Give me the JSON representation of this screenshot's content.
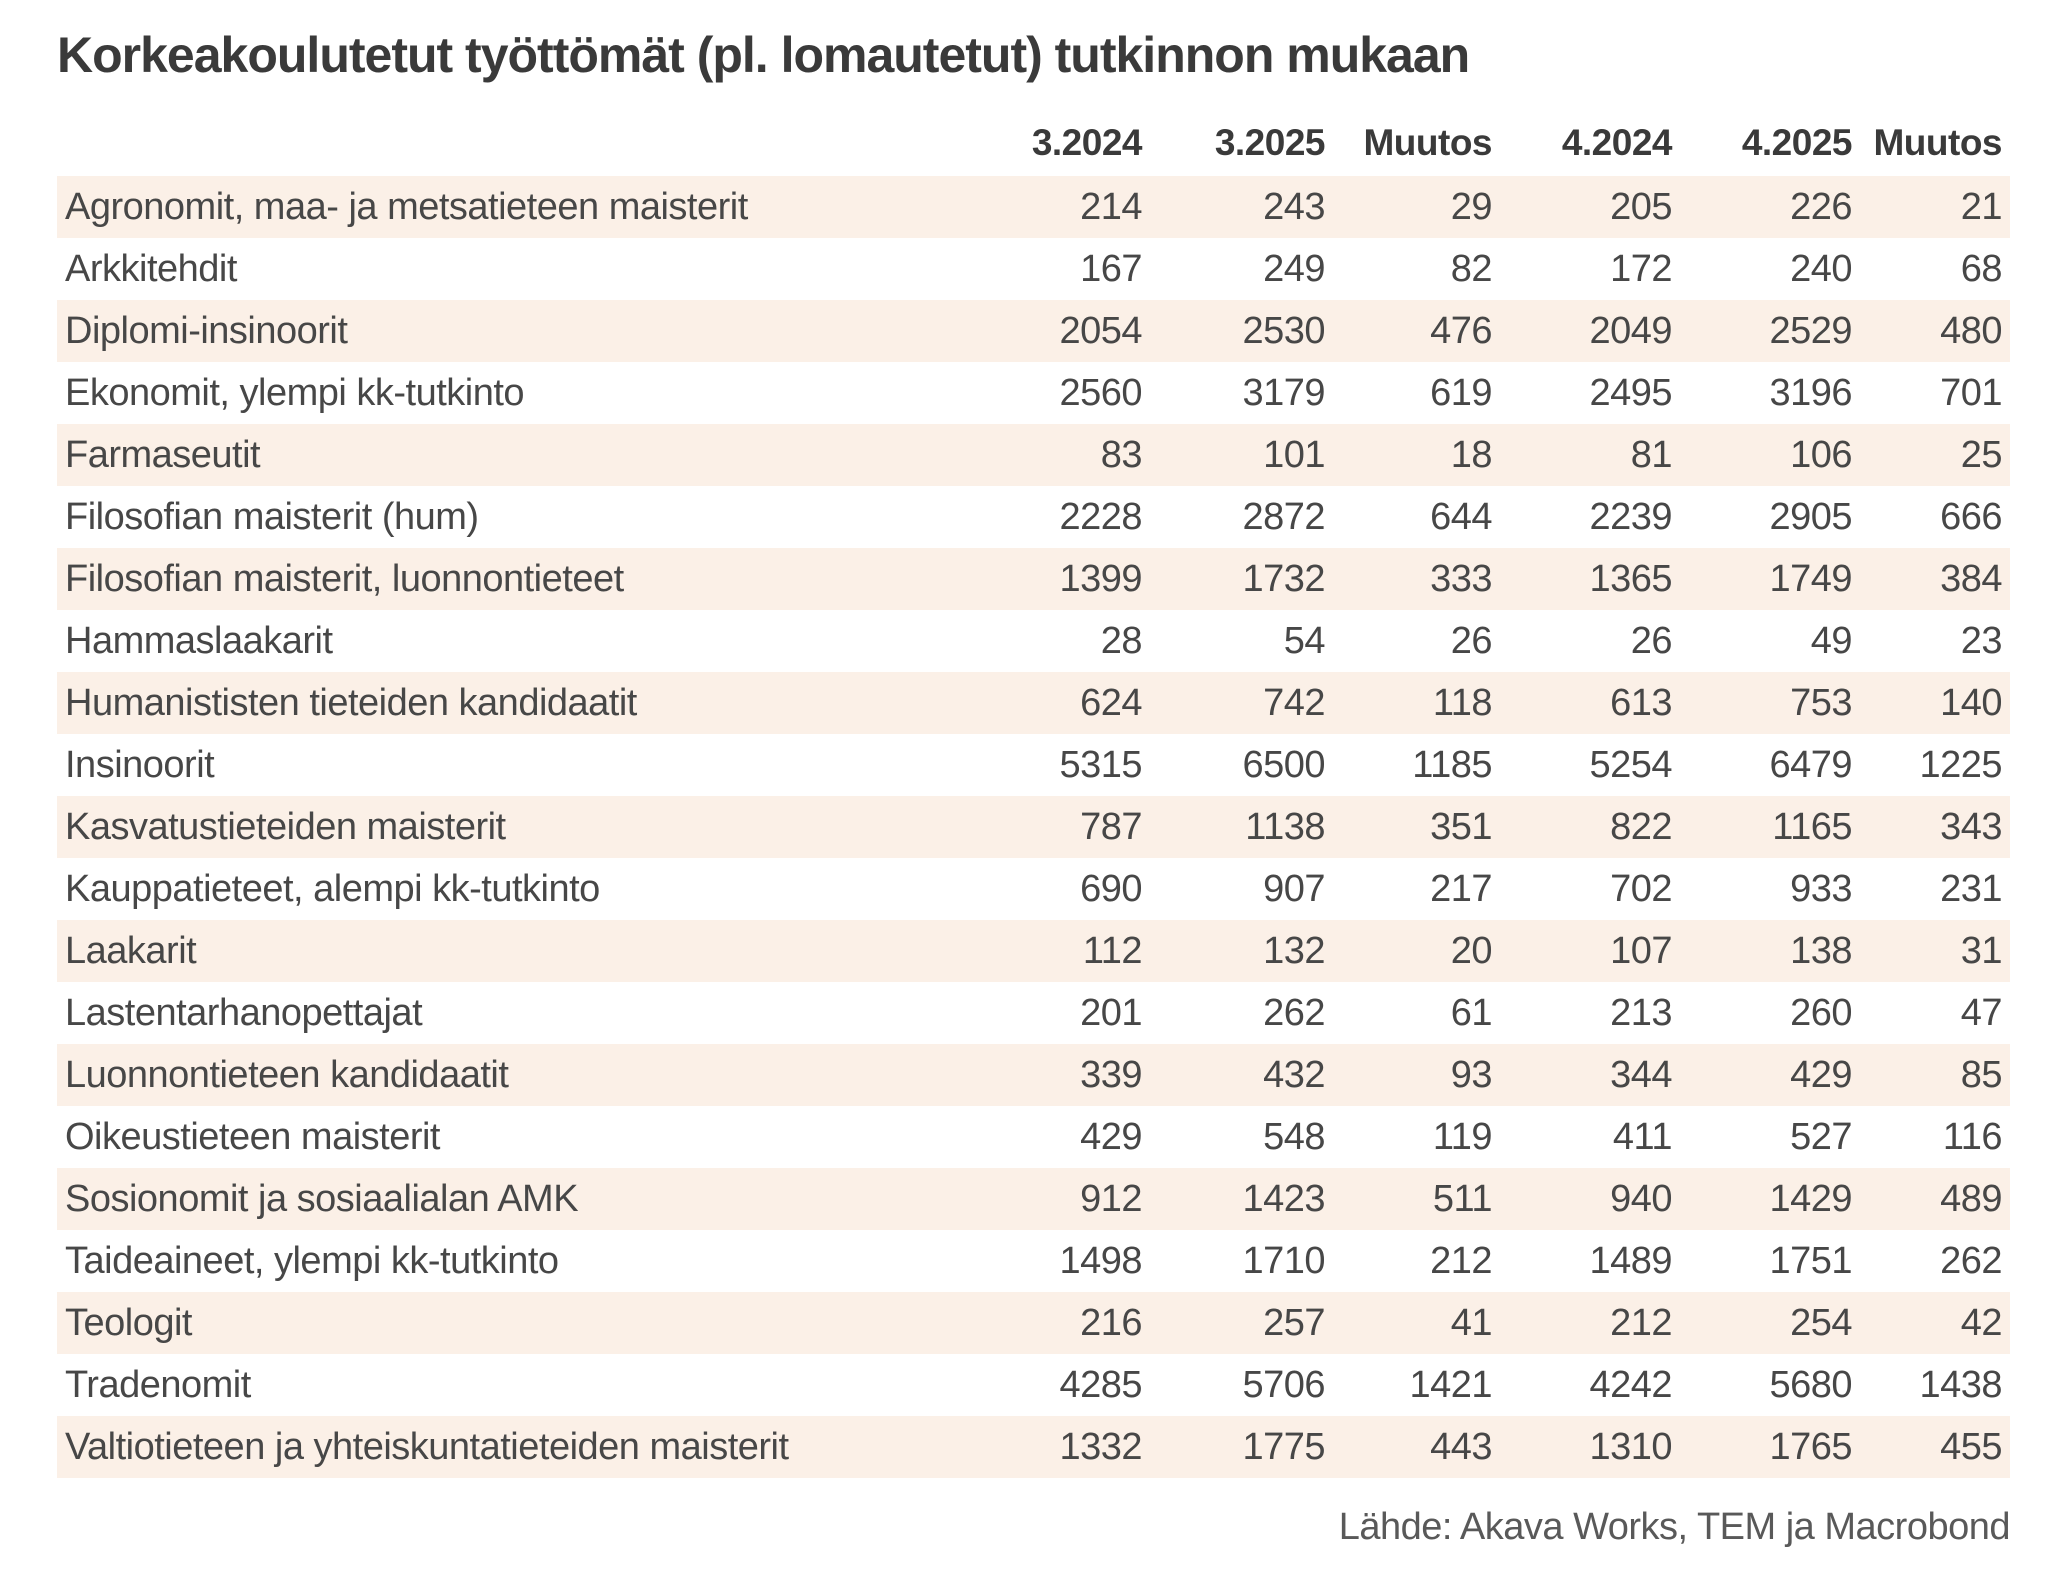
{
  "title": "Korkeakoulutetut työttömät (pl. lomautetut) tutkinnon mukaan",
  "source": "Lähde: Akava Works, TEM ja Macrobond",
  "colors": {
    "stripe": "#fbf0e7",
    "title_text": "#3a3a3a",
    "cell_text": "#474747",
    "source_text": "#595959",
    "background": "#ffffff"
  },
  "chart_data": {
    "type": "table",
    "title": "Korkeakoulutetut työttömät (pl. lomautetut) tutkinnon mukaan",
    "columns": [
      "3.2024",
      "3.2025",
      "Muutos",
      "4.2024",
      "4.2025",
      "Muutos"
    ],
    "rows": [
      {
        "label": "Agronomit, maa- ja metsatieteen maisterit",
        "values": [
          214,
          243,
          29,
          205,
          226,
          21
        ]
      },
      {
        "label": "Arkkitehdit",
        "values": [
          167,
          249,
          82,
          172,
          240,
          68
        ]
      },
      {
        "label": "Diplomi-insinoorit",
        "values": [
          2054,
          2530,
          476,
          2049,
          2529,
          480
        ]
      },
      {
        "label": "Ekonomit, ylempi kk-tutkinto",
        "values": [
          2560,
          3179,
          619,
          2495,
          3196,
          701
        ]
      },
      {
        "label": "Farmaseutit",
        "values": [
          83,
          101,
          18,
          81,
          106,
          25
        ]
      },
      {
        "label": "Filosofian maisterit (hum)",
        "values": [
          2228,
          2872,
          644,
          2239,
          2905,
          666
        ]
      },
      {
        "label": "Filosofian maisterit, luonnontieteet",
        "values": [
          1399,
          1732,
          333,
          1365,
          1749,
          384
        ]
      },
      {
        "label": "Hammaslaakarit",
        "values": [
          28,
          54,
          26,
          26,
          49,
          23
        ]
      },
      {
        "label": "Humanististen tieteiden kandidaatit",
        "values": [
          624,
          742,
          118,
          613,
          753,
          140
        ]
      },
      {
        "label": "Insinoorit",
        "values": [
          5315,
          6500,
          1185,
          5254,
          6479,
          1225
        ]
      },
      {
        "label": "Kasvatustieteiden maisterit",
        "values": [
          787,
          1138,
          351,
          822,
          1165,
          343
        ]
      },
      {
        "label": "Kauppatieteet, alempi kk-tutkinto",
        "values": [
          690,
          907,
          217,
          702,
          933,
          231
        ]
      },
      {
        "label": "Laakarit",
        "values": [
          112,
          132,
          20,
          107,
          138,
          31
        ]
      },
      {
        "label": "Lastentarhanopettajat",
        "values": [
          201,
          262,
          61,
          213,
          260,
          47
        ]
      },
      {
        "label": "Luonnontieteen kandidaatit",
        "values": [
          339,
          432,
          93,
          344,
          429,
          85
        ]
      },
      {
        "label": "Oikeustieteen maisterit",
        "values": [
          429,
          548,
          119,
          411,
          527,
          116
        ]
      },
      {
        "label": "Sosionomit ja sosiaalialan AMK",
        "values": [
          912,
          1423,
          511,
          940,
          1429,
          489
        ]
      },
      {
        "label": "Taideaineet, ylempi kk-tutkinto",
        "values": [
          1498,
          1710,
          212,
          1489,
          1751,
          262
        ]
      },
      {
        "label": "Teologit",
        "values": [
          216,
          257,
          41,
          212,
          254,
          42
        ]
      },
      {
        "label": "Tradenomit",
        "values": [
          4285,
          5706,
          1421,
          4242,
          5680,
          1438
        ]
      },
      {
        "label": "Valtiotieteen ja yhteiskuntatieteiden maisterit",
        "values": [
          1332,
          1775,
          443,
          1310,
          1765,
          455
        ]
      }
    ],
    "source": "Lähde: Akava Works, TEM ja Macrobond",
    "layout": {
      "striped_rows": "odd",
      "stripe_color": "#fbf0e7",
      "numbers_right_aligned": true,
      "legend": "none",
      "grid": "off"
    }
  }
}
